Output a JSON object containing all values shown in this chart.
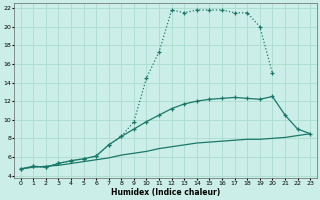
{
  "xlabel": "Humidex (Indice chaleur)",
  "bg_color": "#cceee8",
  "grid_color": "#aaddcc",
  "line_color": "#1a7868",
  "xlim": [
    0,
    23
  ],
  "ylim": [
    4,
    22
  ],
  "xtick_labels": [
    "0",
    "1",
    "2",
    "3",
    "4",
    "5",
    "6",
    "7",
    "8",
    "9",
    "10",
    "11",
    "12",
    "13",
    "14",
    "15",
    "16",
    "17",
    "18",
    "19",
    "20",
    "21",
    "22",
    "23"
  ],
  "ytick_labels": [
    "4",
    "6",
    "8",
    "10",
    "12",
    "14",
    "16",
    "18",
    "20",
    "22"
  ],
  "yticks": [
    4,
    6,
    8,
    10,
    12,
    14,
    16,
    18,
    20,
    22
  ],
  "line1_x": [
    0,
    1,
    2,
    3,
    4,
    5,
    6,
    7,
    8,
    9,
    10,
    11,
    12,
    13,
    14,
    15,
    16,
    17,
    18,
    19,
    20
  ],
  "line1_y": [
    4.7,
    5.0,
    4.9,
    5.3,
    5.6,
    5.8,
    6.1,
    7.3,
    8.2,
    9.8,
    14.5,
    17.3,
    21.8,
    21.5,
    21.8,
    21.8,
    21.8,
    21.5,
    21.5,
    20.0,
    15.0
  ],
  "line2_x": [
    0,
    1,
    2,
    3,
    4,
    5,
    6,
    7,
    8,
    9,
    10,
    11,
    12,
    13,
    14,
    15,
    16,
    17,
    18,
    19,
    20,
    21,
    22,
    23
  ],
  "line2_y": [
    4.7,
    5.0,
    4.9,
    5.3,
    5.6,
    5.8,
    6.1,
    7.3,
    8.2,
    9.0,
    9.8,
    10.5,
    11.2,
    11.7,
    12.0,
    12.2,
    12.3,
    12.4,
    12.3,
    12.2,
    12.5,
    10.5,
    9.0,
    8.5
  ],
  "line3_x": [
    0,
    1,
    2,
    3,
    4,
    5,
    6,
    7,
    8,
    9,
    10,
    11,
    12,
    13,
    14,
    15,
    16,
    17,
    18,
    19,
    20,
    21,
    22,
    23
  ],
  "line3_y": [
    4.7,
    4.9,
    5.0,
    5.1,
    5.3,
    5.5,
    5.7,
    5.9,
    6.2,
    6.4,
    6.6,
    6.9,
    7.1,
    7.3,
    7.5,
    7.6,
    7.7,
    7.8,
    7.9,
    7.9,
    8.0,
    8.1,
    8.3,
    8.5
  ]
}
